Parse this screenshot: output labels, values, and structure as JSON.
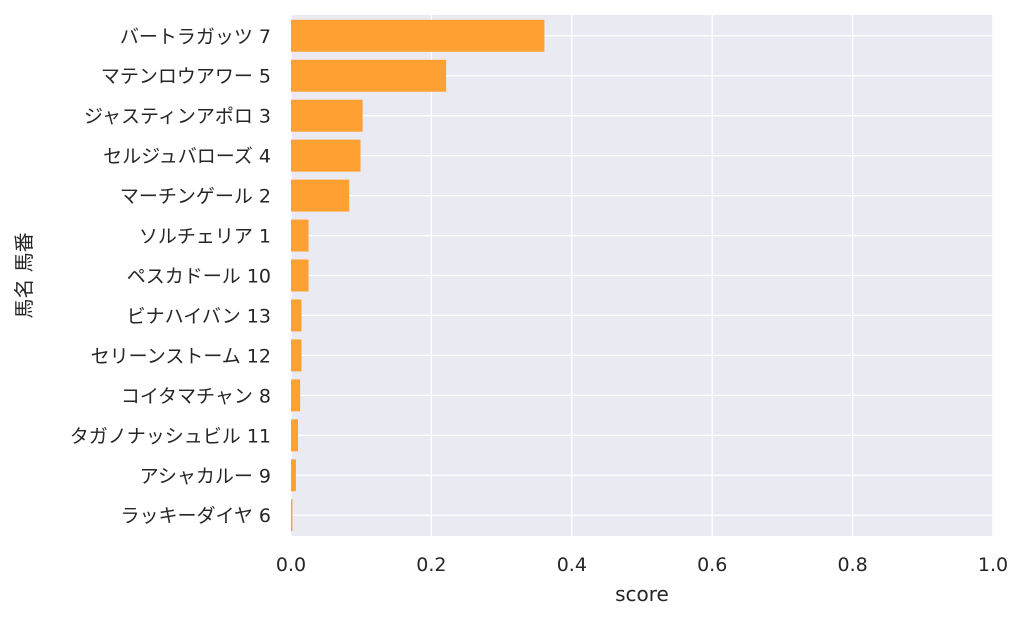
{
  "chart_data": {
    "type": "bar",
    "orientation": "horizontal",
    "categories": [
      "バートラガッツ 7",
      "マテンロウアワー 5",
      "ジャスティンアポロ 3",
      "セルジュバローズ 4",
      "マーチンゲール 2",
      "ソルチェリア 1",
      "ペスカドール 10",
      "ビナハイバン 13",
      "セリーンストーム 12",
      "コイタマチャン 8",
      "タガノナッシュビル 11",
      "アシャカルー 9",
      "ラッキーダイヤ 6"
    ],
    "values": [
      0.361,
      0.221,
      0.102,
      0.099,
      0.083,
      0.025,
      0.025,
      0.015,
      0.015,
      0.013,
      0.01,
      0.007,
      0.002
    ],
    "xlabel": "score",
    "ylabel": "馬名 馬番",
    "xlim": [
      0,
      1.0
    ],
    "xticks": [
      "0.0",
      "0.2",
      "0.4",
      "0.6",
      "0.8",
      "1.0"
    ],
    "grid": true,
    "bar_color": "#ffa033",
    "background_color": "#eaeaf2"
  }
}
